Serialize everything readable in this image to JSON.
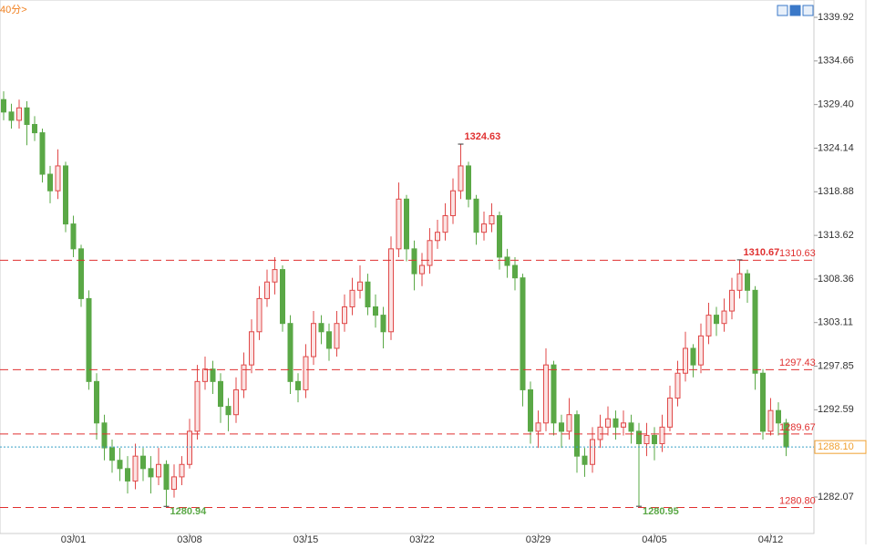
{
  "chart_data": {
    "type": "candlestick",
    "period_label": "40分>",
    "categories": [
      null,
      null,
      null,
      null,
      null,
      null,
      null,
      null,
      null,
      "03/01",
      null,
      null,
      null,
      null,
      null,
      null,
      null,
      null,
      null,
      null,
      null,
      null,
      null,
      null,
      "03/08",
      null,
      null,
      null,
      null,
      null,
      null,
      null,
      null,
      null,
      null,
      null,
      null,
      null,
      null,
      "03/15",
      null,
      null,
      null,
      null,
      null,
      null,
      null,
      null,
      null,
      null,
      null,
      null,
      null,
      null,
      "03/22",
      null,
      null,
      null,
      null,
      null,
      null,
      null,
      null,
      null,
      null,
      null,
      null,
      null,
      null,
      "03/29",
      null,
      null,
      null,
      null,
      null,
      null,
      null,
      null,
      null,
      null,
      null,
      null,
      null,
      null,
      "04/05",
      null,
      null,
      null,
      null,
      null,
      null,
      null,
      null,
      null,
      null,
      null,
      null,
      null,
      null,
      "04/12",
      null,
      null
    ],
    "open": [
      1330,
      1328.5,
      1327.5,
      1329,
      1327,
      1326,
      1321,
      1319,
      1322,
      1315,
      1312,
      1306,
      1296,
      1291,
      1288,
      1286.5,
      1285.5,
      1284,
      1287,
      1285.5,
      1284.5,
      1286,
      1283,
      1284.5,
      1286,
      1290,
      1296,
      1297.5,
      1296,
      1293,
      1292,
      1295,
      1298,
      1302,
      1306,
      1308,
      1309.5,
      1303,
      1296,
      1295,
      1299,
      1303,
      1302,
      1300,
      1303,
      1305,
      1307,
      1308,
      1305,
      1304,
      1302,
      1312,
      1318,
      1312,
      1309,
      1310,
      1313,
      1314,
      1316,
      1319,
      1322,
      1318,
      1314,
      1315,
      1316,
      1311,
      1310,
      1308.5,
      1295,
      1290,
      1291,
      1298,
      1291,
      1290,
      1292,
      1287,
      1286,
      1289,
      1290.5,
      1291.5,
      1290.5,
      1291,
      1290,
      1288.5,
      1289.5,
      1288.5,
      1290.5,
      1294,
      1297,
      1300,
      1298,
      1301.5,
      1304,
      1303,
      1304.5,
      1307,
      1309,
      1307,
      1297,
      1290,
      1292.5,
      1291
    ],
    "high": [
      1331,
      1329.5,
      1330,
      1329.8,
      1328,
      1326.5,
      1322,
      1324,
      1322.5,
      1316,
      1312.5,
      1307,
      1297,
      1292,
      1289,
      1288,
      1287,
      1288.5,
      1288,
      1287,
      1288,
      1286.5,
      1286,
      1287,
      1291.5,
      1298,
      1299,
      1298.5,
      1297,
      1294,
      1296.5,
      1299.5,
      1303.5,
      1307.5,
      1309.5,
      1311,
      1310,
      1304,
      1297,
      1300.5,
      1304.5,
      1304,
      1303,
      1304.5,
      1306.5,
      1308.5,
      1310,
      1309,
      1306.5,
      1305,
      1313.5,
      1320,
      1318.5,
      1313,
      1311.5,
      1314.5,
      1315.5,
      1317.5,
      1320.5,
      1324.63,
      1322.5,
      1318.5,
      1316.5,
      1317.5,
      1316.5,
      1312,
      1311,
      1309,
      1296,
      1292.5,
      1300,
      1298.5,
      1292,
      1294,
      1292.5,
      1288,
      1290.5,
      1292,
      1293,
      1292.5,
      1292.5,
      1292,
      1291,
      1291,
      1290.5,
      1292,
      1295.5,
      1298.5,
      1302,
      1300.5,
      1303,
      1305.5,
      1305,
      1306,
      1308.5,
      1310.67,
      1309.5,
      1307.5,
      1297.5,
      1294,
      1293.5,
      1291.5
    ],
    "low": [
      1327.5,
      1326.5,
      1326.5,
      1324.5,
      1325,
      1320,
      1317.5,
      1318,
      1314,
      1311,
      1305,
      1295,
      1289,
      1286.5,
      1285,
      1284,
      1282.5,
      1283,
      1284,
      1282.5,
      1283.5,
      1280.94,
      1282,
      1283.5,
      1285.5,
      1289,
      1295,
      1294.5,
      1291,
      1290,
      1291,
      1294,
      1297,
      1301,
      1305,
      1306.5,
      1302,
      1294.5,
      1293.5,
      1294,
      1298,
      1300.5,
      1298.5,
      1299,
      1302,
      1304,
      1306,
      1304,
      1302.5,
      1300,
      1301,
      1311,
      1310.5,
      1307,
      1307.5,
      1309,
      1312,
      1313,
      1315,
      1318,
      1317,
      1312.5,
      1313,
      1314,
      1309.5,
      1308.5,
      1307,
      1293,
      1288.5,
      1288,
      1290,
      1289.5,
      1288,
      1289,
      1285,
      1284.5,
      1285,
      1288,
      1289.5,
      1289,
      1289.5,
      1288.5,
      1280.95,
      1287,
      1286.5,
      1287.5,
      1290,
      1293,
      1296,
      1296.5,
      1297,
      1300.5,
      1301.5,
      1302,
      1303.5,
      1306,
      1305.5,
      1295,
      1289,
      1289.5,
      1289.5,
      1287
    ],
    "close": [
      1328.5,
      1327.5,
      1329,
      1327,
      1326,
      1321,
      1319,
      1322,
      1315,
      1312,
      1306,
      1296,
      1291,
      1288,
      1286.5,
      1285.5,
      1284,
      1287,
      1285.5,
      1284.5,
      1286,
      1283,
      1284.5,
      1286,
      1290,
      1296,
      1297.5,
      1296,
      1293,
      1292,
      1295,
      1298,
      1302,
      1306,
      1308,
      1309.5,
      1303,
      1296,
      1295,
      1299,
      1303,
      1302,
      1300,
      1303,
      1305,
      1307,
      1308,
      1305,
      1304,
      1302,
      1312,
      1318,
      1312,
      1309,
      1310,
      1313,
      1314,
      1316,
      1319,
      1322,
      1318,
      1314,
      1315,
      1316,
      1311,
      1310,
      1308.5,
      1295,
      1290,
      1291,
      1298,
      1291,
      1290,
      1292,
      1287,
      1286,
      1289,
      1290.5,
      1291.5,
      1290.5,
      1291,
      1290,
      1288.5,
      1289.5,
      1288.5,
      1290.5,
      1294,
      1297,
      1300,
      1298,
      1301.5,
      1304,
      1303,
      1304.5,
      1307,
      1309,
      1307,
      1297,
      1290,
      1292.5,
      1291,
      1288.1
    ],
    "up_color": "#e04848",
    "down_color": "#5aa846",
    "ylim": [
      1277.67,
      1342.01
    ],
    "yticks": [
      1339.92,
      1334.66,
      {
        "value": 1329.4,
        "label": "1329.40"
      },
      1324.14,
      1318.88,
      1313.62,
      1308.36,
      1303.11,
      1297.85,
      1292.59,
      1282.07
    ],
    "levels": [
      1310.63,
      1297.43,
      1289.67,
      {
        "value": 1280.8,
        "label": "1280.80"
      }
    ],
    "level_color": "#e03030",
    "current_price": {
      "value": 1288.1,
      "label": "1288.10"
    },
    "current_color": "#f0a030",
    "extremes": [
      {
        "index": 59,
        "kind": "high"
      },
      {
        "index": 21,
        "kind": "low"
      },
      {
        "index": 82,
        "kind": "low"
      },
      {
        "index": 95,
        "kind": "high"
      }
    ]
  }
}
